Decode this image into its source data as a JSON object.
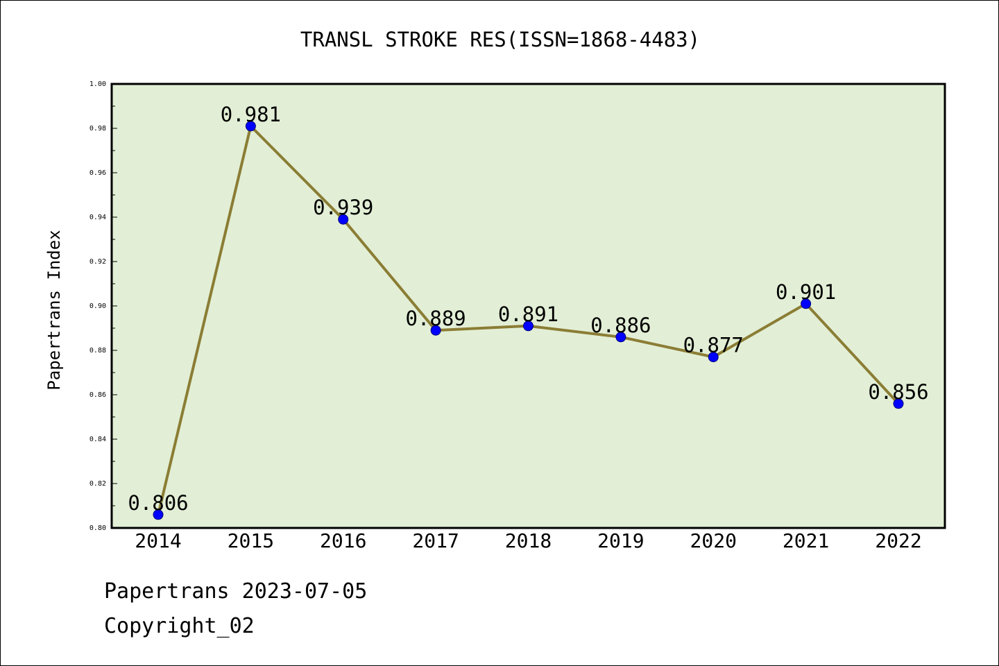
{
  "chart_data": {
    "type": "line",
    "title": "TRANSL STROKE RES(ISSN=1868-4483)",
    "xlabel": "",
    "ylabel": "Papertrans Index",
    "categories": [
      "2014",
      "2015",
      "2016",
      "2017",
      "2018",
      "2019",
      "2020",
      "2021",
      "2022"
    ],
    "values": [
      0.806,
      0.981,
      0.939,
      0.889,
      0.891,
      0.886,
      0.877,
      0.901,
      0.856
    ],
    "data_labels": [
      "0.806",
      "0.981",
      "0.939",
      "0.889",
      "0.891",
      "0.886",
      "0.877",
      "0.901",
      "0.856"
    ],
    "ylim": [
      0.8,
      1.0
    ],
    "y_ticks": [
      "0.80",
      "0.82",
      "0.84",
      "0.86",
      "0.88",
      "0.90",
      "0.92",
      "0.94",
      "0.96",
      "0.98",
      "1.00"
    ],
    "grid": false,
    "legend": "none",
    "colors": {
      "plot_background": "#e2efd6",
      "line": "#8b7d35",
      "marker": "#0000ff",
      "axis": "#000000"
    }
  },
  "footer": {
    "credit": "Papertrans 2023-07-05",
    "copyright": "Copyright_02"
  }
}
